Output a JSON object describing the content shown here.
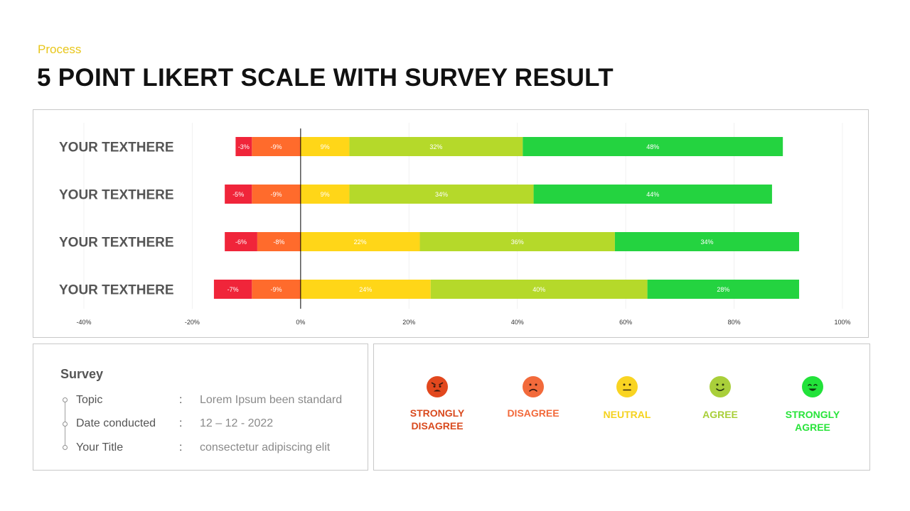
{
  "header": {
    "subtitle": "Process",
    "title": "5 POINT LIKERT SCALE WITH SURVEY RESULT"
  },
  "colors": {
    "strongly_disagree": "#F0253A",
    "disagree": "#FF6B2C",
    "neutral": "#FFD618",
    "agree": "#B5D92A",
    "strongly_agree": "#24D340",
    "subtitle": "#E8C61A",
    "legend_strongly_disagree": "#D94A1E",
    "legend_disagree": "#F2693A",
    "legend_neutral": "#F5D21E",
    "legend_agree": "#A8CF38",
    "legend_strongly_agree": "#28E43A"
  },
  "chart_data": {
    "type": "bar",
    "orientation": "horizontal",
    "stacked": "diverging",
    "categories": [
      "YOUR TEXTHERE",
      "YOUR TEXTHERE",
      "YOUR TEXTHERE",
      "YOUR TEXTHERE"
    ],
    "series": [
      {
        "name": "Strongly Disagree",
        "values": [
          -3,
          -5,
          -6,
          -7
        ],
        "labels": [
          "-3%",
          "-5%",
          "-6%",
          "-7%"
        ]
      },
      {
        "name": "Disagree",
        "values": [
          -9,
          -9,
          -8,
          -9
        ],
        "labels": [
          "-9%",
          "-9%",
          "-8%",
          "-9%"
        ]
      },
      {
        "name": "Neutral",
        "values": [
          9,
          9,
          22,
          24
        ],
        "labels": [
          "9%",
          "9%",
          "22%",
          "24%"
        ]
      },
      {
        "name": "Agree",
        "values": [
          32,
          34,
          36,
          40
        ],
        "labels": [
          "32%",
          "34%",
          "36%",
          "40%"
        ]
      },
      {
        "name": "Strongly Agree",
        "values": [
          48,
          44,
          34,
          28
        ],
        "labels": [
          "48%",
          "44%",
          "34%",
          "28%"
        ]
      }
    ],
    "xlim": [
      -40,
      100
    ],
    "xticks": [
      -40,
      -20,
      0,
      20,
      40,
      60,
      80,
      100
    ],
    "xtick_labels": [
      "-40%",
      "-20%",
      "0%",
      "20%",
      "40%",
      "60%",
      "80%",
      "100%"
    ],
    "grid": true
  },
  "survey": {
    "heading": "Survey",
    "rows": [
      {
        "label": "Topic",
        "colon": ":",
        "value": "Lorem Ipsum  been standard"
      },
      {
        "label": "Date conducted",
        "colon": ":",
        "value": "12 – 12 - 2022"
      },
      {
        "label": "Your Title",
        "colon": ":",
        "value": "consectetur  adipiscing elit"
      }
    ]
  },
  "legend": {
    "items": [
      {
        "label": "STRONGLY\nDISAGREE",
        "icon": "angry-face-icon"
      },
      {
        "label": "DISAGREE",
        "icon": "sad-face-icon"
      },
      {
        "label": "NEUTRAL",
        "icon": "neutral-face-icon"
      },
      {
        "label": "AGREE",
        "icon": "smile-face-icon"
      },
      {
        "label": "STRONGLY\nAGREE",
        "icon": "happy-face-icon"
      }
    ]
  }
}
